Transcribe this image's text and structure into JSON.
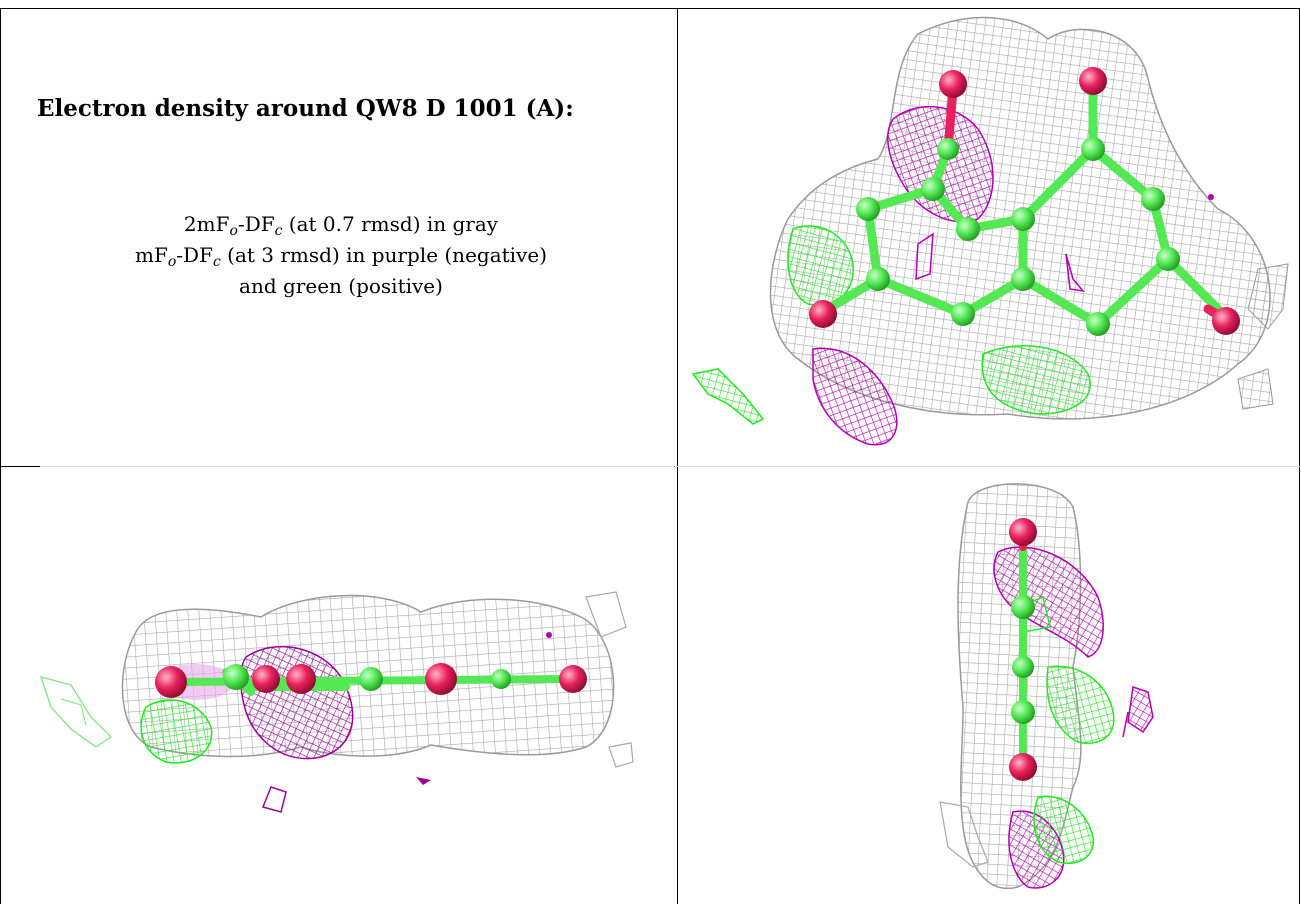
{
  "title": "Electron density around QW8 D 1001 (A):",
  "legend": {
    "line1": {
      "pre": "2mF",
      "sub1": "o",
      "mid": "-DF",
      "sub2": "c",
      "post": " (at 0.7 rmsd) in gray"
    },
    "line2": {
      "pre": "mF",
      "sub1": "o",
      "mid": "-DF",
      "sub2": "c",
      "post": " (at 3 rmsd) in purple (negative)"
    },
    "line3": "and green (positive)"
  },
  "colors": {
    "map_2fofc": "#a9a9a9",
    "map_negative": "#b300b3",
    "map_positive": "#22e822",
    "carbon": "#55e855",
    "oxygen": "#e8215c"
  },
  "icons": {
    "top_right": "ligand-density-view-front",
    "bottom_left": "ligand-density-view-edge",
    "bottom_right": "ligand-density-view-side"
  }
}
